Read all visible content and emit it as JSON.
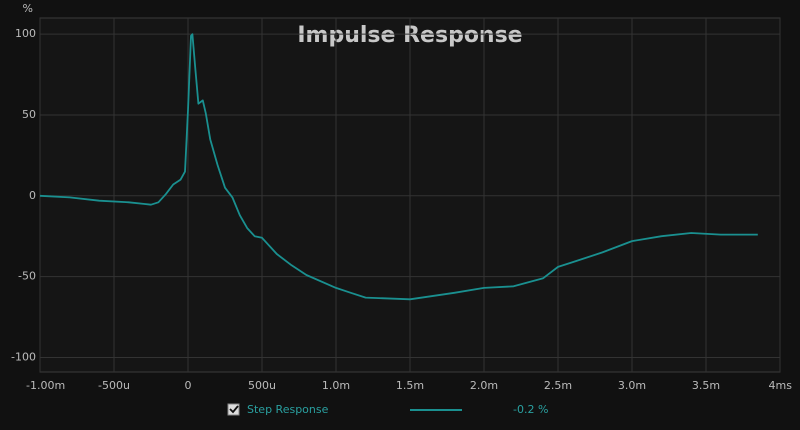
{
  "chart_data": {
    "type": "line",
    "title": "Impulse Response",
    "y_label": "%",
    "x": [
      -1.0,
      -0.8,
      -0.6,
      -0.4,
      -0.3,
      -0.25,
      -0.2,
      -0.15,
      -0.1,
      -0.05,
      -0.02,
      0,
      0.02,
      0.03,
      0.05,
      0.07,
      0.1,
      0.12,
      0.15,
      0.2,
      0.25,
      0.3,
      0.35,
      0.4,
      0.45,
      0.5,
      0.6,
      0.7,
      0.8,
      1.0,
      1.1,
      1.2,
      1.5,
      1.8,
      2.0,
      2.2,
      2.4,
      2.5,
      2.6,
      2.8,
      3.0,
      3.2,
      3.4,
      3.6,
      3.85
    ],
    "series": [
      {
        "name": "Step Response",
        "color": "#1a9090",
        "values": [
          0,
          -1,
          -3,
          -4,
          -5,
          -5.5,
          -4,
          1,
          7,
          10,
          15,
          53,
          99,
          100,
          78,
          57,
          59,
          51,
          35,
          19,
          5,
          -1,
          -12,
          -20,
          -25,
          -26,
          -36,
          -43,
          -49,
          -57,
          -60,
          -63,
          -64,
          -60,
          -57,
          -56,
          -51,
          -44,
          -41,
          -35,
          -28,
          -25,
          -23,
          -24,
          -24
        ]
      }
    ],
    "legend_value": "-0.2 %",
    "xlim": [
      -1,
      4
    ],
    "ylim": [
      -109,
      110
    ],
    "xticks": [
      {
        "value": -1,
        "label": "-1.00m"
      },
      {
        "value": -0.5,
        "label": "-500u"
      },
      0,
      {
        "value": 0.5,
        "label": "500u"
      },
      {
        "value": 1,
        "label": "1.0m"
      },
      {
        "value": 1.5,
        "label": "1.5m"
      },
      {
        "value": 2,
        "label": "2.0m"
      },
      {
        "value": 2.5,
        "label": "2.5m"
      },
      {
        "value": 3,
        "label": "3.0m"
      },
      {
        "value": 3.5,
        "label": "3.5m"
      },
      {
        "value": 4,
        "label": "4ms"
      }
    ],
    "yticks": [
      -100,
      -50,
      0,
      50,
      100
    ],
    "grid": true
  }
}
